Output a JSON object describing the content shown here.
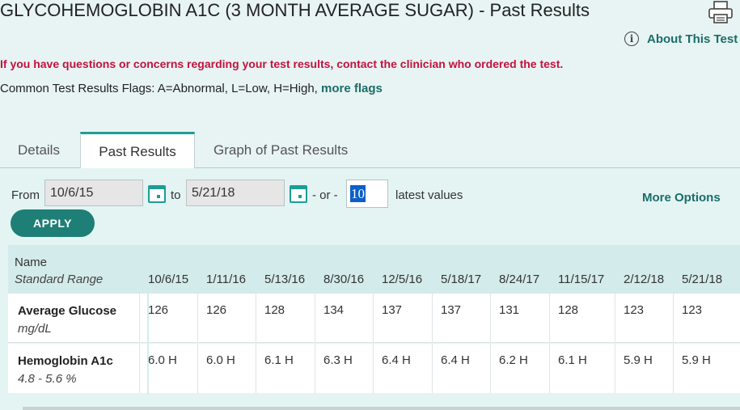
{
  "header": {
    "title": "GLYCOHEMOGLOBIN A1C (3 MONTH AVERAGE SUGAR) - Past Results",
    "about_link": "About This Test",
    "info_glyph": "i",
    "print_icon": "printer-icon"
  },
  "notices": {
    "warning": "If you have questions or concerns regarding your test results, contact the clinician who ordered the test.",
    "flags_text": "Common Test Results Flags: A=Abnormal, L=Low, H=High,",
    "flags_link": "more flags"
  },
  "tabs": [
    {
      "label": "Details",
      "active": false
    },
    {
      "label": "Past Results",
      "active": true
    },
    {
      "label": "Graph of Past Results",
      "active": false
    }
  ],
  "filter": {
    "from_label": "From",
    "from_value": "10/6/15",
    "to_label": "to",
    "to_value": "5/21/18",
    "or_label": "- or -",
    "count_value": "10",
    "latest_label": "latest values",
    "more_options": "More Options",
    "apply_label": "APPLY",
    "calendar_icon": "calendar-icon"
  },
  "table": {
    "name_header": "Name",
    "range_header": "Standard Range",
    "dates": [
      "10/6/15",
      "1/11/16",
      "5/13/16",
      "8/30/16",
      "12/5/16",
      "5/18/17",
      "8/24/17",
      "11/15/17",
      "2/12/18",
      "5/21/18"
    ],
    "rows": [
      {
        "name": "Average Glucose",
        "sub": "mg/dL",
        "values": [
          "126",
          "126",
          "128",
          "134",
          "137",
          "137",
          "131",
          "128",
          "123",
          "123"
        ]
      },
      {
        "name": "Hemoglobin A1c",
        "sub": "4.8 - 5.6 %",
        "values": [
          "6.0 H",
          "6.0 H",
          "6.1 H",
          "6.3 H",
          "6.4 H",
          "6.4 H",
          "6.2 H",
          "6.1 H",
          "5.9 H",
          "5.9 H"
        ]
      }
    ]
  },
  "colors": {
    "accent": "#1e9c95",
    "link": "#1a6d69",
    "warning": "#c3123e",
    "button": "#1e7f76"
  }
}
